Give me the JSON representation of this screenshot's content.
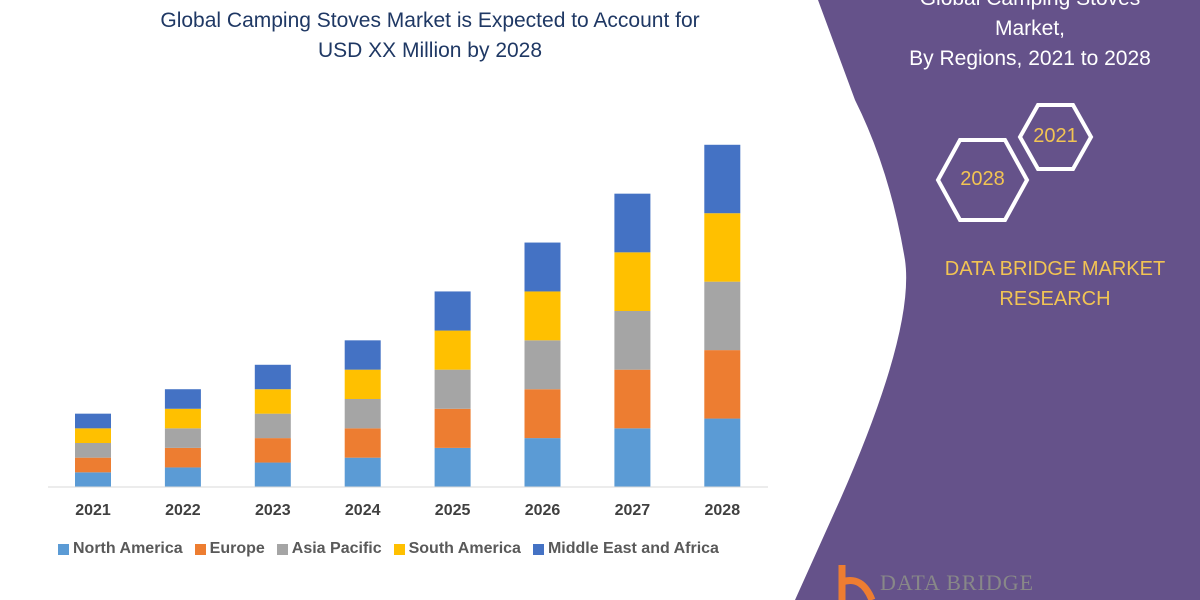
{
  "chart_data": {
    "type": "bar",
    "stacked": true,
    "title": "Global Camping Stoves Market is Expected to Account for USD XX Million by 2028",
    "title_lines": [
      "Global Camping Stoves Market is Expected to Account for",
      "USD XX Million by 2028"
    ],
    "categories": [
      "2021",
      "2022",
      "2023",
      "2024",
      "2025",
      "2026",
      "2027",
      "2028"
    ],
    "series": [
      {
        "name": "North America",
        "color": "#5B9BD5",
        "values": [
          15,
          20,
          25,
          30,
          40,
          50,
          60,
          70
        ]
      },
      {
        "name": "Europe",
        "color": "#ED7D31",
        "values": [
          15,
          20,
          25,
          30,
          40,
          50,
          60,
          70
        ]
      },
      {
        "name": "Asia Pacific",
        "color": "#A5A5A5",
        "values": [
          15,
          20,
          25,
          30,
          40,
          50,
          60,
          70
        ]
      },
      {
        "name": "South America",
        "color": "#FFC000",
        "values": [
          15,
          20,
          25,
          30,
          40,
          50,
          60,
          70
        ]
      },
      {
        "name": "Middle East and Africa",
        "color": "#4472C4",
        "values": [
          15,
          20,
          25,
          30,
          40,
          50,
          60,
          70
        ]
      }
    ],
    "ylim": [
      0,
      360
    ],
    "yaxis_visible": false,
    "grid": false,
    "legend": "bottom"
  },
  "side_panel": {
    "title_lines": [
      "Global Camping Stoves Market,",
      "By Regions, 2021 to 2028"
    ],
    "hex_start": "2021",
    "hex_end": "2028",
    "brand_lines": [
      "DATA BRIDGE MARKET",
      "RESEARCH"
    ],
    "logo_text": "DATA BRIDGE",
    "color": "#65528A",
    "accent": "#F2C453"
  }
}
